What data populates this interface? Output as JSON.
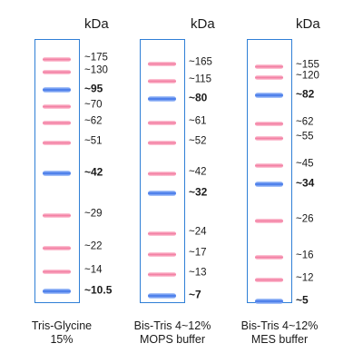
{
  "unit_label": "kDa",
  "ladders": [
    {
      "caption": [
        "Tris-Glycine",
        "15%"
      ],
      "bands": [
        {
          "label": "~175",
          "color": "pink",
          "bold": false
        },
        {
          "label": "~130",
          "color": "pink",
          "bold": false
        },
        {
          "label": "~95",
          "color": "blue",
          "bold": true
        },
        {
          "label": "~70",
          "color": "pink",
          "bold": false
        },
        {
          "label": "~62",
          "color": "pink",
          "bold": false
        },
        {
          "label": "~51",
          "color": "pink",
          "bold": false
        },
        {
          "label": "~42",
          "color": "blue",
          "bold": true
        },
        {
          "label": "~29",
          "color": "pink",
          "bold": false
        },
        {
          "label": "~22",
          "color": "pink",
          "bold": false
        },
        {
          "label": "~14",
          "color": "pink",
          "bold": false
        },
        {
          "label": "~10.5",
          "color": "blue",
          "bold": true
        }
      ]
    },
    {
      "caption": [
        "Bis-Tris 4~12%",
        "MOPS buffer"
      ],
      "bands": [
        {
          "label": "~165",
          "color": "pink",
          "bold": false
        },
        {
          "label": "~115",
          "color": "pink",
          "bold": false
        },
        {
          "label": "~80",
          "color": "blue",
          "bold": true
        },
        {
          "label": "~61",
          "color": "pink",
          "bold": false
        },
        {
          "label": "~52",
          "color": "pink",
          "bold": false
        },
        {
          "label": "~42",
          "color": "pink",
          "bold": false
        },
        {
          "label": "~32",
          "color": "blue",
          "bold": true
        },
        {
          "label": "~24",
          "color": "pink",
          "bold": false
        },
        {
          "label": "~17",
          "color": "pink",
          "bold": false
        },
        {
          "label": "~13",
          "color": "pink",
          "bold": false
        },
        {
          "label": "~7",
          "color": "blue",
          "bold": true
        }
      ]
    },
    {
      "caption": [
        "Bis-Tris 4~12%",
        "MES buffer"
      ],
      "bands": [
        {
          "label": "~155",
          "color": "pink",
          "bold": false
        },
        {
          "label": "~120",
          "color": "pink",
          "bold": false
        },
        {
          "label": "~82",
          "color": "blue",
          "bold": true
        },
        {
          "label": "~62",
          "color": "pink",
          "bold": false
        },
        {
          "label": "~55",
          "color": "pink",
          "bold": false
        },
        {
          "label": "~45",
          "color": "pink",
          "bold": false
        },
        {
          "label": "~34",
          "color": "blue",
          "bold": true
        },
        {
          "label": "~26",
          "color": "pink",
          "bold": false
        },
        {
          "label": "~16",
          "color": "pink",
          "bold": false
        },
        {
          "label": "~12",
          "color": "pink",
          "bold": false
        },
        {
          "label": "~5",
          "color": "blue",
          "bold": true
        }
      ]
    }
  ]
}
